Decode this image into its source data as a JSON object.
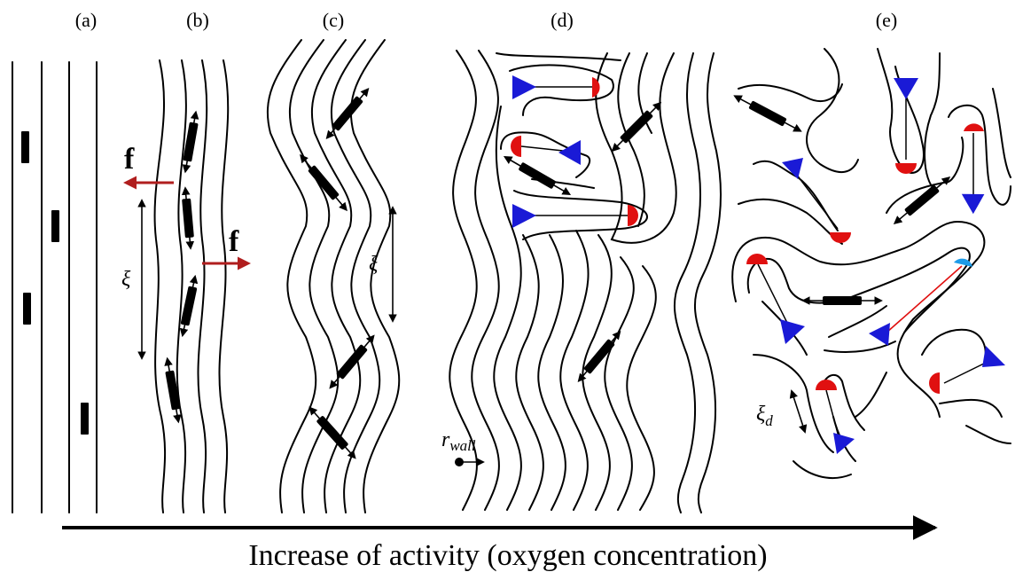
{
  "panels": {
    "a": "(a)",
    "b": "(b)",
    "c": "(c)",
    "d": "(d)",
    "e": "(e)"
  },
  "symbols": {
    "force": "f",
    "xi": "ξ",
    "r_wall_main": "r",
    "r_wall_sub": "wall",
    "xi_d_main": "ξ",
    "xi_d_sub": "d"
  },
  "caption": "Increase of activity (oxygen concentration)",
  "colors": {
    "force_arrow": "#b01e1e",
    "plus_defect": "#e01010",
    "minus_defect": "#1a1ad6",
    "highlight_defect": "#1e9be8",
    "line": "#000000"
  }
}
